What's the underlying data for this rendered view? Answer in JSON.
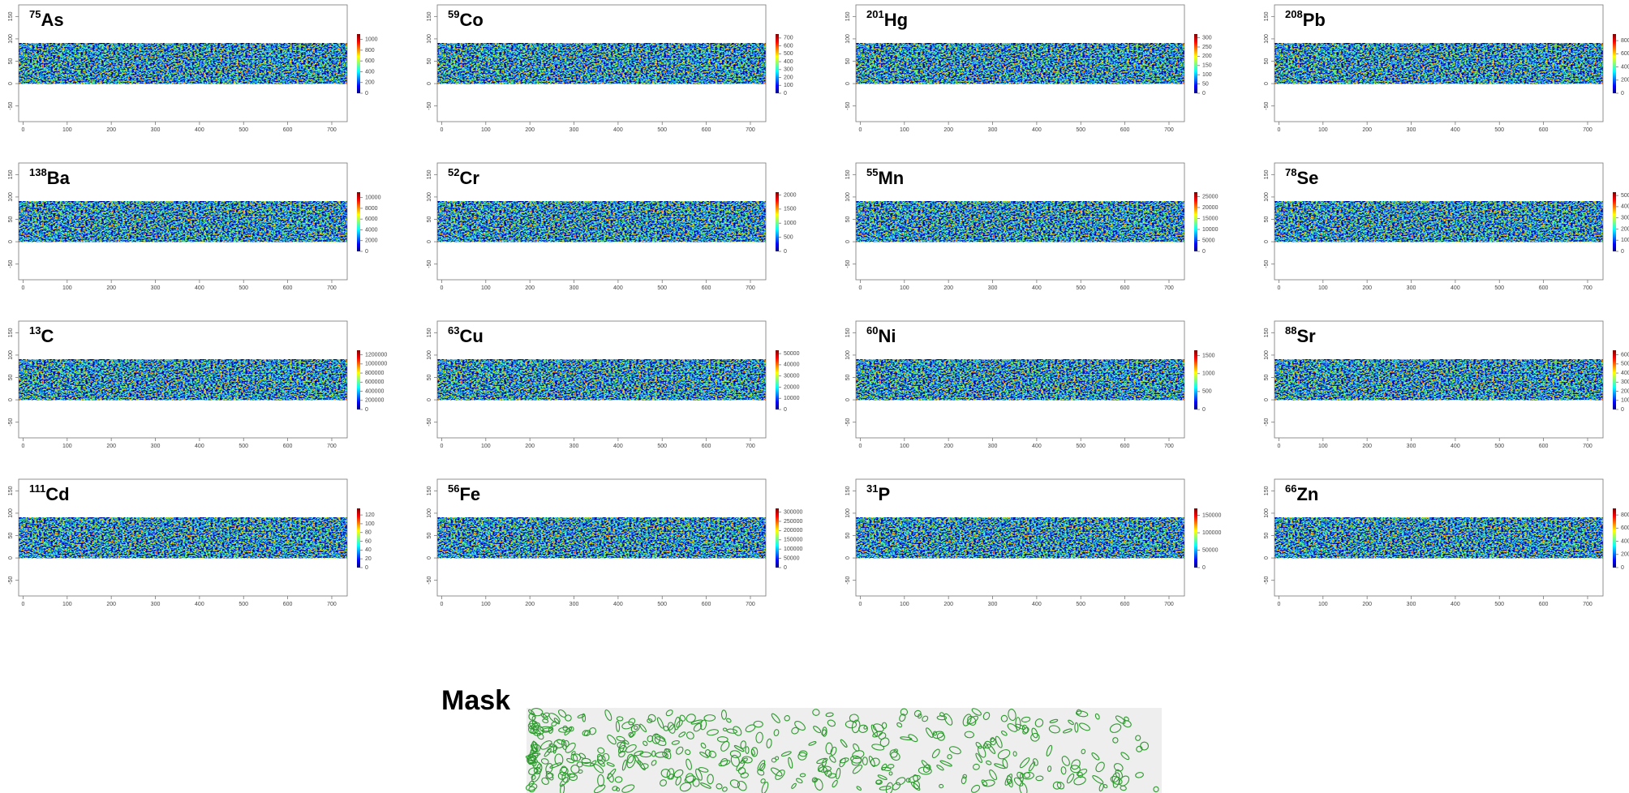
{
  "chart_data": [
    {
      "type": "heatmap",
      "isotope": "75",
      "element": "As",
      "xlim": [
        -10,
        735
      ],
      "xticks": [
        0,
        100,
        200,
        300,
        400,
        500,
        600,
        700
      ],
      "ylim": [
        -85,
        176
      ],
      "yticks": [
        -50,
        0,
        50,
        100,
        150
      ],
      "clim": [
        0,
        1100
      ],
      "cticks": [
        0,
        200,
        400,
        600,
        800,
        1000
      ]
    },
    {
      "type": "heatmap",
      "isotope": "59",
      "element": "Co",
      "xlim": [
        -10,
        735
      ],
      "xticks": [
        0,
        100,
        200,
        300,
        400,
        500,
        600,
        700
      ],
      "ylim": [
        -85,
        176
      ],
      "yticks": [
        -50,
        0,
        50,
        100,
        150
      ],
      "clim": [
        0,
        750
      ],
      "cticks": [
        0,
        100,
        200,
        300,
        400,
        500,
        600,
        700
      ]
    },
    {
      "type": "heatmap",
      "isotope": "201",
      "element": "Hg",
      "xlim": [
        -10,
        735
      ],
      "xticks": [
        0,
        100,
        200,
        300,
        400,
        500,
        600,
        700
      ],
      "ylim": [
        -85,
        176
      ],
      "yticks": [
        -50,
        0,
        50,
        100,
        150
      ],
      "clim": [
        0,
        320
      ],
      "cticks": [
        0,
        50,
        100,
        150,
        200,
        250,
        300
      ]
    },
    {
      "type": "heatmap",
      "isotope": "208",
      "element": "Pb",
      "xlim": [
        -10,
        735
      ],
      "xticks": [
        0,
        100,
        200,
        300,
        400,
        500,
        600,
        700
      ],
      "ylim": [
        -85,
        176
      ],
      "yticks": [
        -50,
        0,
        50,
        100,
        150
      ],
      "clim": [
        0,
        900
      ],
      "cticks": [
        0,
        200,
        400,
        600,
        800
      ]
    },
    {
      "type": "heatmap",
      "isotope": "138",
      "element": "Ba",
      "xlim": [
        -10,
        735
      ],
      "xticks": [
        0,
        100,
        200,
        300,
        400,
        500,
        600,
        700
      ],
      "ylim": [
        -85,
        176
      ],
      "yticks": [
        -50,
        0,
        50,
        100,
        150
      ],
      "clim": [
        0,
        11000
      ],
      "cticks": [
        0,
        2000,
        4000,
        6000,
        8000,
        10000
      ]
    },
    {
      "type": "heatmap",
      "isotope": "52",
      "element": "Cr",
      "xlim": [
        -10,
        735
      ],
      "xticks": [
        0,
        100,
        200,
        300,
        400,
        500,
        600,
        700
      ],
      "ylim": [
        -85,
        176
      ],
      "yticks": [
        -50,
        0,
        50,
        100,
        150
      ],
      "clim": [
        0,
        2100
      ],
      "cticks": [
        0,
        500,
        1000,
        1500,
        2000
      ]
    },
    {
      "type": "heatmap",
      "isotope": "55",
      "element": "Mn",
      "xlim": [
        -10,
        735
      ],
      "xticks": [
        0,
        100,
        200,
        300,
        400,
        500,
        600,
        700
      ],
      "ylim": [
        -85,
        176
      ],
      "yticks": [
        -50,
        0,
        50,
        100,
        150
      ],
      "clim": [
        0,
        27000
      ],
      "cticks": [
        0,
        5000,
        10000,
        15000,
        20000,
        25000
      ]
    },
    {
      "type": "heatmap",
      "isotope": "78",
      "element": "Se",
      "xlim": [
        -10,
        735
      ],
      "xticks": [
        0,
        100,
        200,
        300,
        400,
        500,
        600,
        700
      ],
      "ylim": [
        -85,
        176
      ],
      "yticks": [
        -50,
        0,
        50,
        100,
        150
      ],
      "clim": [
        0,
        530
      ],
      "cticks": [
        0,
        100,
        200,
        300,
        400,
        500
      ]
    },
    {
      "type": "heatmap",
      "isotope": "13",
      "element": "C",
      "xlim": [
        -10,
        735
      ],
      "xticks": [
        0,
        100,
        200,
        300,
        400,
        500,
        600,
        700
      ],
      "ylim": [
        -85,
        176
      ],
      "yticks": [
        -50,
        0,
        50,
        100,
        150
      ],
      "clim": [
        0,
        1300000
      ],
      "cticks": [
        0,
        200000,
        400000,
        600000,
        800000,
        1000000,
        1200000
      ]
    },
    {
      "type": "heatmap",
      "isotope": "63",
      "element": "Cu",
      "xlim": [
        -10,
        735
      ],
      "xticks": [
        0,
        100,
        200,
        300,
        400,
        500,
        600,
        700
      ],
      "ylim": [
        -85,
        176
      ],
      "yticks": [
        -50,
        0,
        50,
        100,
        150
      ],
      "clim": [
        0,
        53000
      ],
      "cticks": [
        0,
        10000,
        20000,
        30000,
        40000,
        50000
      ]
    },
    {
      "type": "heatmap",
      "isotope": "60",
      "element": "Ni",
      "xlim": [
        -10,
        735
      ],
      "xticks": [
        0,
        100,
        200,
        300,
        400,
        500,
        600,
        700
      ],
      "ylim": [
        -85,
        176
      ],
      "yticks": [
        -50,
        0,
        50,
        100,
        150
      ],
      "clim": [
        0,
        1650
      ],
      "cticks": [
        0,
        500,
        1000,
        1500
      ]
    },
    {
      "type": "heatmap",
      "isotope": "88",
      "element": "Sr",
      "xlim": [
        -10,
        735
      ],
      "xticks": [
        0,
        100,
        200,
        300,
        400,
        500,
        600,
        700
      ],
      "ylim": [
        -85,
        176
      ],
      "yticks": [
        -50,
        0,
        50,
        100,
        150
      ],
      "clim": [
        0,
        650
      ],
      "cticks": [
        0,
        100,
        200,
        300,
        400,
        500,
        600
      ]
    },
    {
      "type": "heatmap",
      "isotope": "111",
      "element": "Cd",
      "xlim": [
        -10,
        735
      ],
      "xticks": [
        0,
        100,
        200,
        300,
        400,
        500,
        600,
        700
      ],
      "ylim": [
        -85,
        176
      ],
      "yticks": [
        -50,
        0,
        50,
        100,
        150
      ],
      "clim": [
        0,
        135
      ],
      "cticks": [
        0,
        20,
        40,
        60,
        80,
        100,
        120
      ]
    },
    {
      "type": "heatmap",
      "isotope": "56",
      "element": "Fe",
      "xlim": [
        -10,
        735
      ],
      "xticks": [
        0,
        100,
        200,
        300,
        400,
        500,
        600,
        700
      ],
      "ylim": [
        -85,
        176
      ],
      "yticks": [
        -50,
        0,
        50,
        100,
        150
      ],
      "clim": [
        0,
        320000
      ],
      "cticks": [
        0,
        50000,
        100000,
        150000,
        200000,
        250000,
        300000
      ]
    },
    {
      "type": "heatmap",
      "isotope": "31",
      "element": "P",
      "xlim": [
        -10,
        735
      ],
      "xticks": [
        0,
        100,
        200,
        300,
        400,
        500,
        600,
        700
      ],
      "ylim": [
        -85,
        176
      ],
      "yticks": [
        -50,
        0,
        50,
        100,
        150
      ],
      "clim": [
        0,
        170000
      ],
      "cticks": [
        0,
        50000,
        100000,
        150000
      ]
    },
    {
      "type": "heatmap",
      "isotope": "66",
      "element": "Zn",
      "xlim": [
        -10,
        735
      ],
      "xticks": [
        0,
        100,
        200,
        300,
        400,
        500,
        600,
        700
      ],
      "ylim": [
        -85,
        176
      ],
      "yticks": [
        -50,
        0,
        50,
        100,
        150
      ],
      "clim": [
        0,
        900
      ],
      "cticks": [
        0,
        200,
        400,
        600,
        800
      ]
    }
  ],
  "mask_panel": {
    "title": "Mask"
  }
}
